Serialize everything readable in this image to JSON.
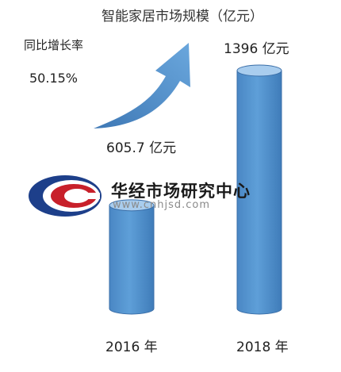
{
  "chart_data": {
    "type": "bar",
    "title": "智能家居市场规模（亿元）",
    "categories": [
      "2016 年",
      "2018 年"
    ],
    "values": [
      605.7,
      1396
    ],
    "value_labels": [
      "605.7 亿元",
      "1396 亿元"
    ],
    "growth": {
      "label": "同比增长率",
      "value": "50.15%"
    },
    "xlabel": "",
    "ylabel": "",
    "bar_color": "#5b9bd5",
    "arrow_color": "#5b9bd5"
  },
  "watermark": {
    "name": "华经市场研究中心",
    "url": "www.cnhjsd.com"
  }
}
